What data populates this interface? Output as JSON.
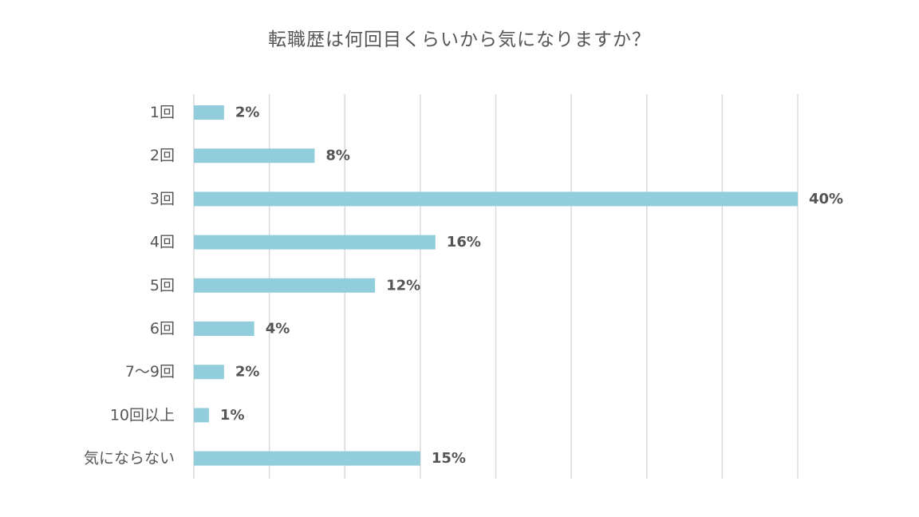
{
  "chart_data": {
    "type": "bar",
    "orientation": "horizontal",
    "title": "転職歴は何回目くらいから気になりますか？",
    "categories": [
      "1回",
      "2回",
      "3回",
      "4回",
      "5回",
      "6回",
      "7〜9回",
      "10回以上",
      "気にならない"
    ],
    "values": [
      2,
      8,
      40,
      16,
      12,
      4,
      2,
      1,
      15
    ],
    "value_labels": [
      "2%",
      "8%",
      "40%",
      "16%",
      "12%",
      "4%",
      "2%",
      "1%",
      "15%"
    ],
    "xlim": [
      0,
      40
    ],
    "grid": true,
    "legend": "none",
    "bar_color": "#92CDDC",
    "grid_color": "#D9D9D9"
  }
}
